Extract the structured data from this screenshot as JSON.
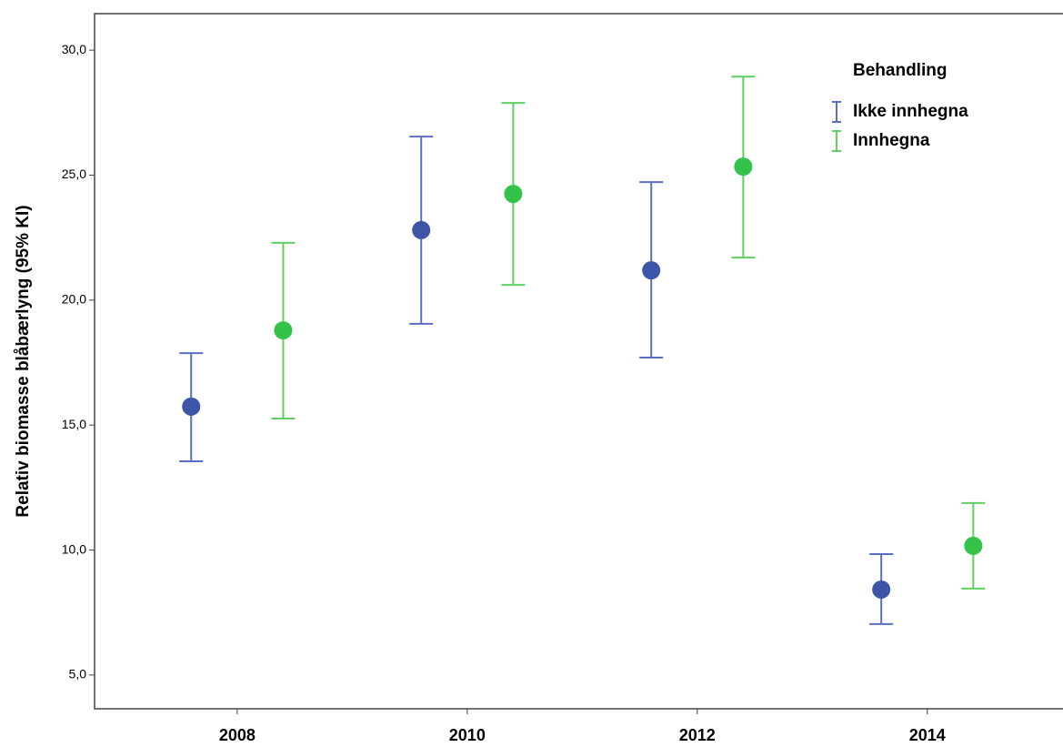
{
  "chart_data": {
    "type": "errorbar",
    "y_label": "Relativ biomasse blåbærlyng (95% KI)",
    "legend_title": "Behandling",
    "legend_position": "upper right",
    "xlim": [
      2006.76,
      2015.18
    ],
    "xticks": [
      2008,
      2010,
      2012,
      2014
    ],
    "ylim": [
      3.65,
      31.46
    ],
    "yticks": [
      {
        "value": 5,
        "label": "5,0"
      },
      {
        "value": 10,
        "label": "10,0"
      },
      {
        "value": 15,
        "label": "15,0"
      },
      {
        "value": 20,
        "label": "20,0"
      },
      {
        "value": 25,
        "label": "25,0"
      },
      {
        "value": 30,
        "label": "30,0"
      }
    ],
    "series": [
      {
        "name": "Ikke innhegna",
        "color": "#3c55a8",
        "bar_color": "#5b6fc2",
        "x": [
          2007.6,
          2009.6,
          2011.6,
          2013.6
        ],
        "values": [
          15.74,
          22.8,
          21.19,
          8.42
        ],
        "lower": [
          13.55,
          19.05,
          17.7,
          7.04
        ],
        "upper": [
          17.88,
          26.54,
          24.72,
          9.84
        ]
      },
      {
        "name": "Innhegna",
        "color": "#34c34a",
        "bar_color": "#5fcf62",
        "x": [
          2008.4,
          2010.4,
          2012.4,
          2014.4
        ],
        "values": [
          18.79,
          24.25,
          25.34,
          10.17
        ],
        "lower": [
          15.26,
          20.61,
          21.7,
          8.46
        ],
        "upper": [
          22.29,
          27.89,
          28.94,
          11.88
        ]
      }
    ]
  }
}
